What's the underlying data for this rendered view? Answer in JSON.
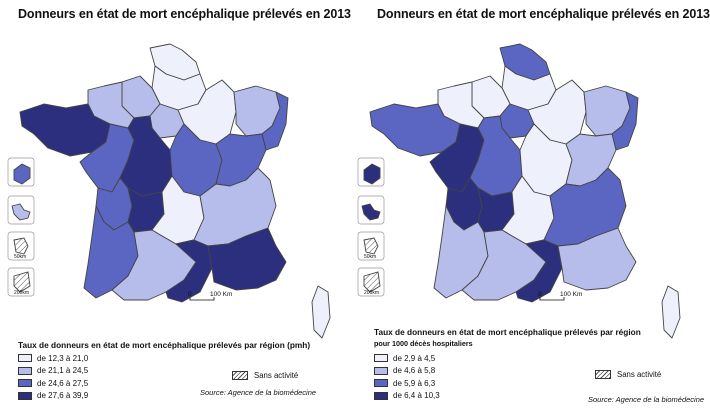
{
  "colors": {
    "c1": "#eef0fb",
    "c2": "#b6bdea",
    "c3": "#5b66c2",
    "c4": "#2b2f7e"
  },
  "maps": [
    {
      "title": "Donneurs en état de mort encéphalique prélevés en 2013",
      "legend_title": "Taux de donneurs en état de mort encéphalique prélevés par région (pmh)",
      "legend_subtitle": "",
      "legend": [
        {
          "label": "de 12,3 à 21,0",
          "color": "#eef0fb"
        },
        {
          "label": "de 21,1 à 24,5",
          "color": "#b6bdea"
        },
        {
          "label": "de 24,6 à 27,5",
          "color": "#5b66c2"
        },
        {
          "label": "de 27,6 à 39,9",
          "color": "#2b2f7e"
        }
      ],
      "no_activity_label": "Sans activité",
      "source": "Source: Agence de la biomédecine",
      "scale_label": "100 Km",
      "scale_zero": "0",
      "dom_labels": [
        "50km",
        "200km"
      ],
      "regions": {
        "nord": "#eef0fb",
        "picardie": "#eef0fb",
        "hnormandie": "#b6bdea",
        "bnormandie": "#b6bdea",
        "bretagne": "#2b2f7e",
        "idf": "#b6bdea",
        "champagne": "#eef0fb",
        "lorraine": "#b6bdea",
        "alsace": "#5b66c2",
        "pdl": "#5b66c2",
        "centre": "#2b2f7e",
        "bourgogne": "#5b66c2",
        "fcomte": "#5b66c2",
        "poitou": "#5b66c2",
        "limousin": "#2b2f7e",
        "auvergne": "#eef0fb",
        "rhone": "#b6bdea",
        "aquitaine": "#5b66c2",
        "midi": "#b6bdea",
        "languedoc": "#2b2f7e",
        "paca": "#2b2f7e",
        "corse": "#eef0fb",
        "dom1": "#5b66c2",
        "dom2": "#b6bdea",
        "dom3": "#ffffff",
        "dom4": "#ffffff"
      }
    },
    {
      "title": "Donneurs en état de mort encéphalique prélevés en 2013",
      "legend_title": "Taux de donneurs en état de mort encéphalique prélevés par région",
      "legend_subtitle": "pour 1000 décès hospitaliers",
      "legend": [
        {
          "label": "de 2,9 à 4,5",
          "color": "#eef0fb"
        },
        {
          "label": "de 4,6 à 5,8",
          "color": "#b6bdea"
        },
        {
          "label": "de 5,9 à 6,3",
          "color": "#5b66c2"
        },
        {
          "label": "de 6,4 à 10,3",
          "color": "#2b2f7e"
        }
      ],
      "no_activity_label": "Sans activité",
      "source": "Source: Agence de la biomédecine",
      "scale_label": "100 Km",
      "scale_zero": "0",
      "dom_labels": [
        "50km",
        "200km"
      ],
      "regions": {
        "nord": "#5b66c2",
        "picardie": "#eef0fb",
        "hnormandie": "#eef0fb",
        "bnormandie": "#eef0fb",
        "bretagne": "#5b66c2",
        "idf": "#5b66c2",
        "champagne": "#eef0fb",
        "lorraine": "#b6bdea",
        "alsace": "#5b66c2",
        "pdl": "#2b2f7e",
        "centre": "#5b66c2",
        "bourgogne": "#eef0fb",
        "fcomte": "#b6bdea",
        "poitou": "#2b2f7e",
        "limousin": "#2b2f7e",
        "auvergne": "#eef0fb",
        "rhone": "#5b66c2",
        "aquitaine": "#b6bdea",
        "midi": "#b6bdea",
        "languedoc": "#2b2f7e",
        "paca": "#b6bdea",
        "corse": "#eef0fb",
        "dom1": "#2b2f7e",
        "dom2": "#2b2f7e",
        "dom3": "#ffffff",
        "dom4": "#ffffff"
      }
    }
  ]
}
